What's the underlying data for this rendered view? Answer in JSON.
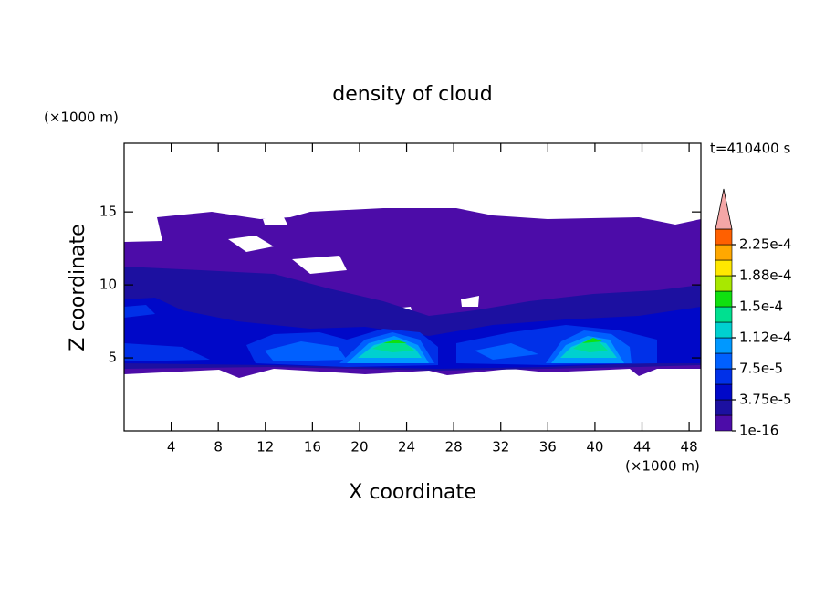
{
  "chart_data": {
    "type": "contour",
    "title": "density of cloud",
    "x_label": "X coordinate",
    "y_label": "Z coordinate",
    "x_unit": "(×1000 m)",
    "y_unit": "(×1000 m)",
    "time_label": "t=410400 s",
    "xlim": [
      0,
      49
    ],
    "ylim": [
      0,
      19.7
    ],
    "xticks": [
      4,
      8,
      12,
      16,
      20,
      24,
      28,
      32,
      36,
      40,
      44,
      48
    ],
    "yticks": [
      5,
      10,
      15
    ],
    "colorbar": {
      "levels": [
        1e-16,
        1.875e-05,
        3.75e-05,
        5.625e-05,
        7.5e-05,
        9.375e-05,
        0.0001125,
        0.00013125,
        0.00015,
        0.00016875,
        0.0001875,
        0.00020625,
        0.000225,
        0.00024375
      ],
      "colors": [
        "#4c0ca8",
        "#1c10a0",
        "#0008c8",
        "#0030e8",
        "#0060ff",
        "#0098ff",
        "#00d0d0",
        "#00e090",
        "#10e010",
        "#a8e800",
        "#ffe800",
        "#ffa800",
        "#ff6000"
      ],
      "extend_color": "#f4a6a6",
      "ticks": [
        {
          "value": 1e-16,
          "label": "1e-16"
        },
        {
          "value": 3.75e-05,
          "label": "3.75e-5"
        },
        {
          "value": 7.5e-05,
          "label": "7.5e-5"
        },
        {
          "value": 0.0001125,
          "label": "1.12e-4"
        },
        {
          "value": 0.00015,
          "label": "1.5e-4"
        },
        {
          "value": 0.0001875,
          "label": "1.88e-4"
        },
        {
          "value": 0.000225,
          "label": "2.25e-4"
        }
      ]
    }
  }
}
